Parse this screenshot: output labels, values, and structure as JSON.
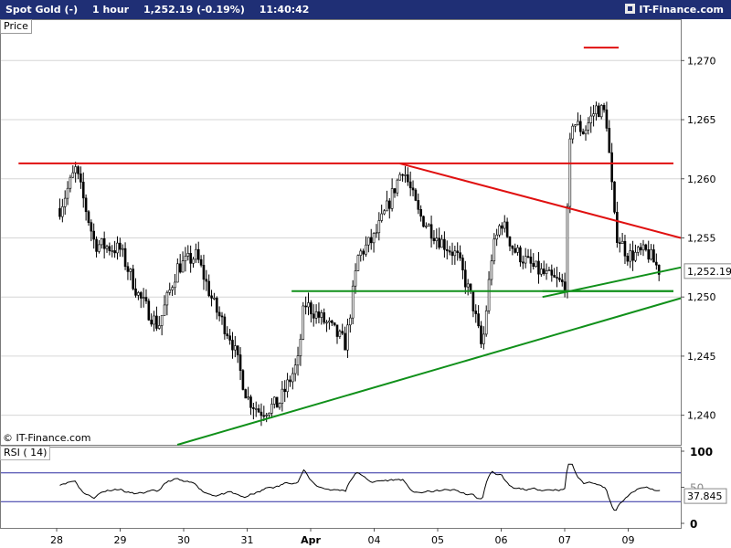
{
  "header": {
    "instrument": "Spot Gold (-)",
    "timeframe": "1 hour",
    "quote": "1,252.19 (-0.19%)",
    "time": "11:40:42",
    "brand": "IT-Finance.com"
  },
  "watermark": "© IT-Finance.com",
  "colors": {
    "resistance": "#e01010",
    "support": "#10901a",
    "rsi_band": "#2a2aa0",
    "background": "#ffffff"
  },
  "chart_data": [
    {
      "type": "candlestick",
      "title": "Price",
      "x_tick_labels": [
        "28",
        "29",
        "30",
        "31",
        "Apr",
        "04",
        "05",
        "06",
        "07",
        "09"
      ],
      "y_ticks": [
        1240,
        1245,
        1250,
        1255,
        1260,
        1265,
        1270
      ],
      "y_tick_labels": [
        "1,240",
        "1,245",
        "1,250",
        "1,255",
        "1,260",
        "1,265",
        "1,270"
      ],
      "ylim": [
        1237.5,
        1273.5
      ],
      "last_price": 1252.19,
      "last_price_label": "1,252.19",
      "grid": "horizontal",
      "close_path": [
        [
          0.05,
          1257.5
        ],
        [
          0.3,
          1260.8
        ],
        [
          0.6,
          1254.5
        ],
        [
          1.0,
          1254.0
        ],
        [
          1.3,
          1250.0
        ],
        [
          1.6,
          1247.5
        ],
        [
          1.9,
          1252.5
        ],
        [
          2.2,
          1253.5
        ],
        [
          2.5,
          1249.0
        ],
        [
          2.75,
          1246.5
        ],
        [
          3.0,
          1241.5
        ],
        [
          3.2,
          1240.3
        ],
        [
          3.5,
          1241.0
        ],
        [
          3.8,
          1244.5
        ],
        [
          3.9,
          1249.5
        ],
        [
          4.1,
          1248.5
        ],
        [
          4.3,
          1247.5
        ],
        [
          4.55,
          1246.0
        ],
        [
          4.75,
          1253.5
        ],
        [
          5.0,
          1255.0
        ],
        [
          5.2,
          1257.5
        ],
        [
          5.45,
          1261.0
        ],
        [
          5.7,
          1257.0
        ],
        [
          6.0,
          1255.0
        ],
        [
          6.3,
          1253.5
        ],
        [
          6.55,
          1249.5
        ],
        [
          6.7,
          1245.5
        ],
        [
          6.85,
          1253.5
        ],
        [
          7.0,
          1256.5
        ],
        [
          7.2,
          1254.0
        ],
        [
          7.5,
          1252.5
        ],
        [
          7.8,
          1251.5
        ],
        [
          8.0,
          1251.0
        ],
        [
          8.1,
          1265.0
        ],
        [
          8.3,
          1264.0
        ],
        [
          8.5,
          1266.0
        ],
        [
          8.65,
          1265.5
        ],
        [
          8.8,
          1255.5
        ],
        [
          9.0,
          1253.5
        ],
        [
          9.3,
          1253.8
        ],
        [
          9.5,
          1252.19
        ]
      ],
      "horizontal_lines": [
        {
          "style": "resistance",
          "y": 1271.1,
          "x": [
            8.3,
            8.85
          ]
        },
        {
          "style": "resistance",
          "y": 1261.3,
          "x": [
            -0.6,
            10.2
          ]
        },
        {
          "style": "support",
          "y": 1250.5,
          "x": [
            3.7,
            10.2
          ]
        },
        {
          "style": "support",
          "y": 1250.5,
          "x": [
            7.65,
            10.2
          ]
        }
      ],
      "trendlines": [
        {
          "style": "resistance",
          "from": [
            5.4,
            1261.3
          ],
          "to": [
            10.2,
            1255.0
          ]
        },
        {
          "style": "support",
          "from": [
            1.9,
            1237.5
          ],
          "to": [
            10.4,
            1249.9
          ]
        },
        {
          "style": "support",
          "from": [
            7.65,
            1250.0
          ],
          "to": [
            10.3,
            1252.5
          ]
        }
      ]
    },
    {
      "type": "line",
      "title": "RSI ( 14)",
      "ylim": [
        0,
        100
      ],
      "y_tick_labels": [
        "100",
        "50",
        "0"
      ],
      "y_ticks": [
        100,
        50,
        0
      ],
      "bands": [
        70,
        30
      ],
      "last_value": 37.845,
      "last_value_label": "37.845"
    }
  ]
}
